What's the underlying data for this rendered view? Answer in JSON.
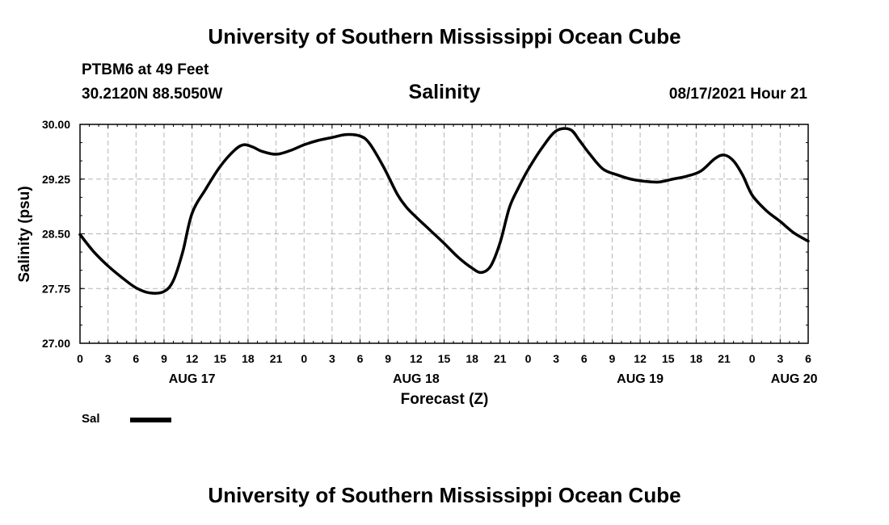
{
  "header": {
    "title": "University of Southern Mississippi Ocean Cube"
  },
  "station": {
    "name": "PTBM6 at 49 Feet",
    "coords": "30.2120N  88.5050W"
  },
  "forecast_time": "08/17/2021 Hour 21",
  "footer": {
    "title": "University of Southern Mississippi Ocean Cube"
  },
  "legend": {
    "label": "Sal",
    "color": "#000000"
  },
  "chart_data": {
    "type": "line",
    "title": "Salinity",
    "xlabel": "Forecast (Z)",
    "ylabel": "Salinity (psu)",
    "x_unit": "hours since AUG 17 00Z",
    "xlim": [
      0,
      78
    ],
    "ylim": [
      27.0,
      30.0
    ],
    "grid": true,
    "y_ticks": [
      "27.00",
      "27.75",
      "28.50",
      "29.25",
      "30.00"
    ],
    "x_tick_labels": [
      "0",
      "3",
      "6",
      "9",
      "12",
      "15",
      "18",
      "21",
      "0",
      "3",
      "6",
      "9",
      "12",
      "15",
      "18",
      "21",
      "0",
      "3",
      "6",
      "9",
      "12",
      "15",
      "18",
      "21",
      "0",
      "3",
      "6"
    ],
    "date_labels": [
      {
        "label": "AUG 17",
        "hour": 12
      },
      {
        "label": "AUG 18",
        "hour": 36
      },
      {
        "label": "AUG 19",
        "hour": 60
      },
      {
        "label": "AUG 20",
        "hour": 76.5
      }
    ],
    "series": [
      {
        "name": "Sal",
        "x": [
          0,
          1.5,
          3,
          4.5,
          6,
          7.5,
          9,
          10,
          11,
          12,
          13.5,
          15,
          16.5,
          17.5,
          18.5,
          19.5,
          21,
          22.5,
          24,
          25.5,
          27,
          28.5,
          30,
          31,
          32.5,
          34,
          35,
          36,
          37.5,
          39,
          40.5,
          42,
          43,
          44,
          45,
          46,
          47,
          48,
          49.5,
          51,
          52.5,
          53.5,
          54.5,
          56,
          57.5,
          59,
          60.5,
          62,
          63.5,
          65,
          66.5,
          68,
          69,
          70,
          71,
          72,
          73.5,
          75,
          76.5,
          78
        ],
        "values": [
          28.49,
          28.25,
          28.06,
          27.9,
          27.76,
          27.69,
          27.71,
          27.86,
          28.25,
          28.78,
          29.12,
          29.42,
          29.64,
          29.72,
          29.69,
          29.63,
          29.59,
          29.64,
          29.72,
          29.78,
          29.82,
          29.86,
          29.84,
          29.74,
          29.42,
          29.04,
          28.86,
          28.73,
          28.55,
          28.37,
          28.18,
          28.03,
          27.97,
          28.06,
          28.38,
          28.86,
          29.14,
          29.38,
          29.68,
          29.91,
          29.93,
          29.78,
          29.61,
          29.39,
          29.31,
          29.25,
          29.22,
          29.21,
          29.25,
          29.29,
          29.36,
          29.53,
          29.58,
          29.5,
          29.3,
          29.03,
          28.82,
          28.67,
          28.51,
          28.4
        ]
      }
    ]
  }
}
